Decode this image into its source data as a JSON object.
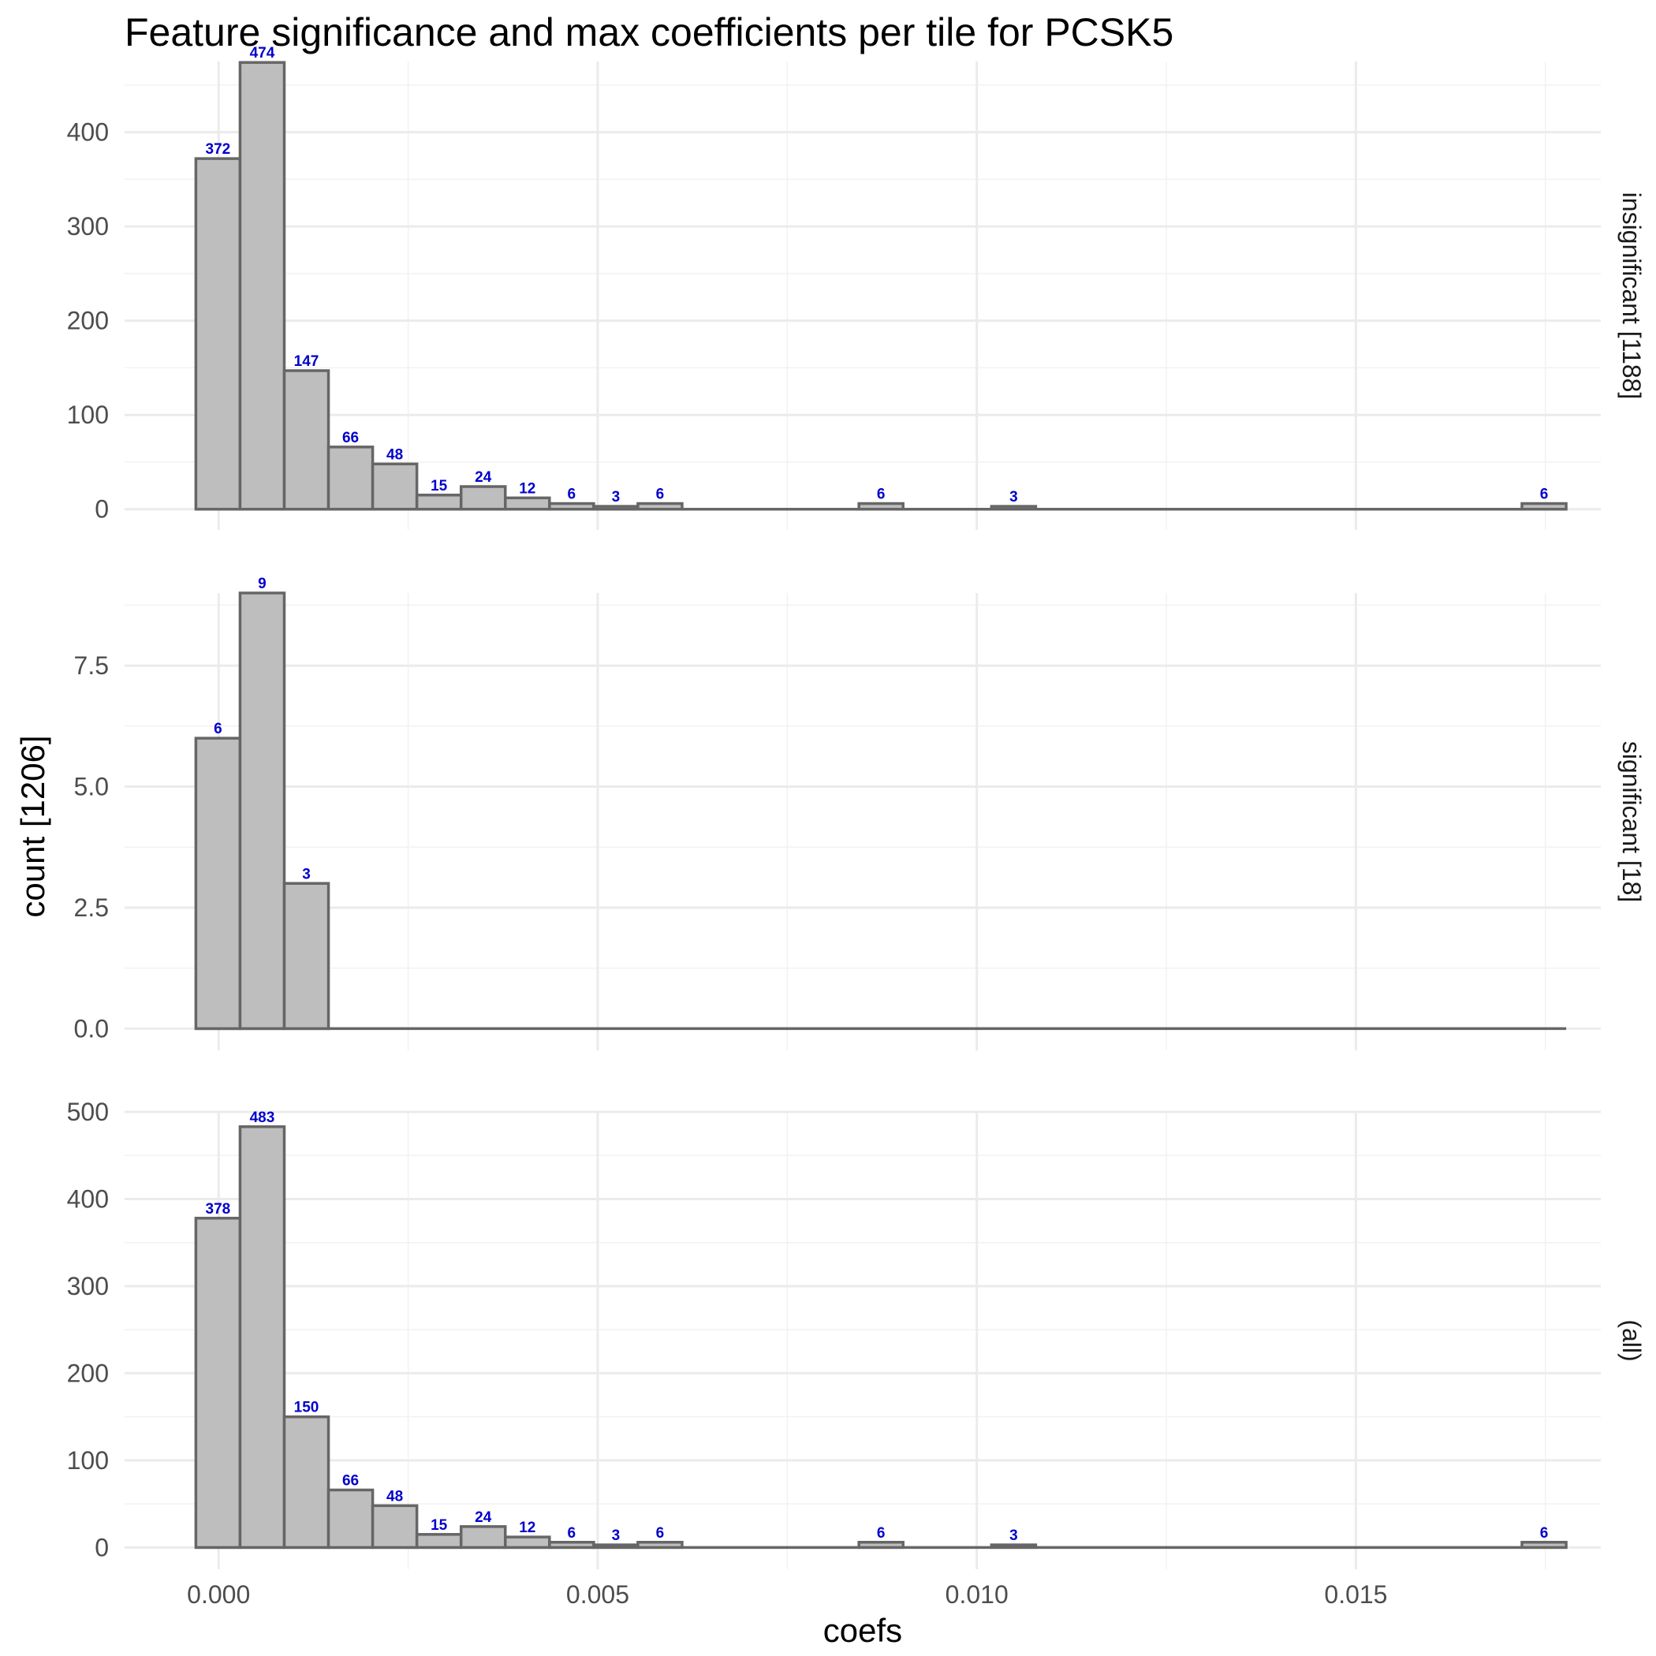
{
  "chart_data": {
    "type": "bar",
    "title": "Feature significance and max coefficients per tile for PCSK5",
    "xlabel": "coefs",
    "ylabel": "count [1206]",
    "xlim": [
      -0.00124,
      0.01823
    ],
    "x_ticks": [
      0.0,
      0.005,
      0.01,
      0.015
    ],
    "x_tick_labels": [
      "0.000",
      "0.005",
      "0.010",
      "0.015"
    ],
    "bin_width": 0.000583,
    "bins_start": -0.0003,
    "grid": true,
    "legend": "none",
    "colors": {
      "bar_fill": "#bebebe",
      "bar_outline": "#666666",
      "count_label": "#0000cc",
      "grid": "#ebebeb"
    },
    "panels": [
      {
        "strip_label": "insignificant [1188]",
        "ylim": [
          -22,
          475
        ],
        "y_ticks": [
          0,
          100,
          200,
          300,
          400
        ],
        "y_tick_labels": [
          "0",
          "100",
          "200",
          "300",
          "400"
        ],
        "y_minor_ticks": [
          50,
          150,
          250,
          350,
          450
        ],
        "bin_counts": [
          372,
          474,
          147,
          66,
          48,
          15,
          24,
          12,
          6,
          3,
          6,
          0,
          0,
          0,
          0,
          6,
          0,
          0,
          3,
          0,
          0,
          0,
          0,
          0,
          0,
          0,
          0,
          0,
          0,
          0,
          6
        ]
      },
      {
        "strip_label": "significant [18]",
        "ylim": [
          -0.45,
          9.0
        ],
        "y_ticks": [
          0,
          2.5,
          5,
          7.5
        ],
        "y_tick_labels": [
          "0.0",
          "2.5",
          "5.0",
          "7.5"
        ],
        "y_minor_ticks": [
          1.25,
          3.75,
          6.25,
          8.75
        ],
        "bin_counts": [
          6,
          9,
          3,
          0,
          0,
          0,
          0,
          0,
          0,
          0,
          0,
          0,
          0,
          0,
          0,
          0,
          0,
          0,
          0,
          0,
          0,
          0,
          0,
          0,
          0,
          0,
          0,
          0,
          0,
          0,
          0
        ]
      },
      {
        "strip_label": "(all)",
        "ylim": [
          -25,
          500
        ],
        "y_ticks": [
          0,
          100,
          200,
          300,
          400,
          500
        ],
        "y_tick_labels": [
          "0",
          "100",
          "200",
          "300",
          "400",
          "500"
        ],
        "y_minor_ticks": [
          50,
          150,
          250,
          350,
          450
        ],
        "bin_counts": [
          378,
          483,
          150,
          66,
          48,
          15,
          24,
          12,
          6,
          3,
          6,
          0,
          0,
          0,
          0,
          6,
          0,
          0,
          3,
          0,
          0,
          0,
          0,
          0,
          0,
          0,
          0,
          0,
          0,
          0,
          6
        ]
      }
    ]
  }
}
